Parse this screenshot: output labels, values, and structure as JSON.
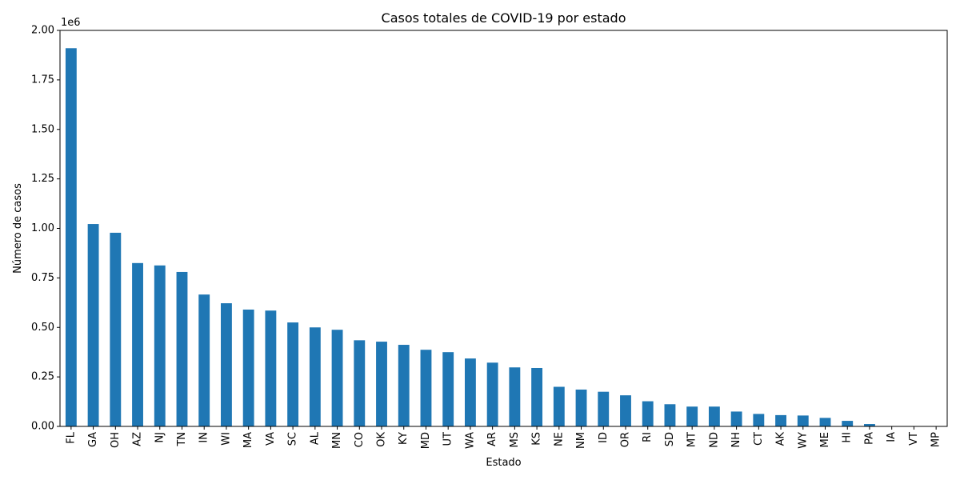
{
  "chart_data": {
    "type": "bar",
    "title": "Casos totales de COVID-19 por estado",
    "xlabel": "Estado",
    "ylabel": "Número de casos",
    "offset_text": "1e6",
    "ylim": [
      0,
      2000000
    ],
    "yticks": [
      0,
      250000,
      500000,
      750000,
      1000000,
      1250000,
      1500000,
      1750000,
      2000000
    ],
    "ytick_labels": [
      "0.00",
      "0.25",
      "0.50",
      "0.75",
      "1.00",
      "1.25",
      "1.50",
      "1.75",
      "2.00"
    ],
    "grid": false,
    "bar_color": "#1f77b4",
    "categories": [
      "FL",
      "GA",
      "OH",
      "AZ",
      "NJ",
      "TN",
      "IN",
      "WI",
      "MA",
      "VA",
      "SC",
      "AL",
      "MN",
      "CO",
      "OK",
      "KY",
      "MD",
      "UT",
      "WA",
      "AR",
      "MS",
      "KS",
      "NE",
      "NM",
      "ID",
      "OR",
      "RI",
      "SD",
      "MT",
      "ND",
      "NH",
      "CT",
      "AK",
      "WY",
      "ME",
      "HI",
      "PA",
      "IA",
      "VT",
      "MP"
    ],
    "values": [
      1910000,
      1022000,
      978000,
      825000,
      813000,
      780000,
      666000,
      622000,
      590000,
      585000,
      525000,
      500000,
      488000,
      435000,
      428000,
      412000,
      387000,
      375000,
      343000,
      322000,
      298000,
      295000,
      200000,
      186000,
      175000,
      157000,
      127000,
      112000,
      100000,
      100000,
      75000,
      63000,
      57000,
      55000,
      43000,
      28000,
      12000,
      1000,
      1000,
      500
    ]
  }
}
